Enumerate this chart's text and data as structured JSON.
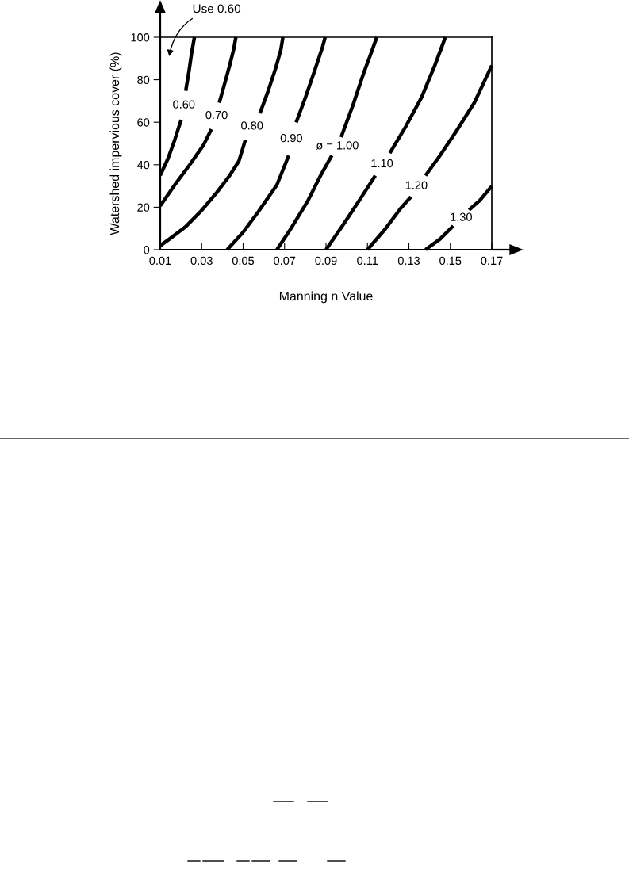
{
  "chart_data": {
    "type": "line",
    "xlabel": "Manning n Value",
    "ylabel": "Watershed impervious cover (%)",
    "xlim": [
      0.01,
      0.17
    ],
    "ylim": [
      0,
      100
    ],
    "xticks": [
      0.01,
      0.03,
      0.05,
      0.07,
      0.09,
      0.11,
      0.13,
      0.15,
      0.17
    ],
    "yticks": [
      0,
      20,
      40,
      60,
      80,
      100
    ],
    "grid": false,
    "legend": false,
    "marker": "none",
    "line_style": "solid",
    "series": [
      {
        "name": "0.60",
        "color": "#000000",
        "x": [
          0.01,
          0.0138,
          0.017,
          0.0201,
          0.0214,
          0.0223,
          0.0239,
          0.0252,
          0.0265
        ],
        "values": [
          35,
          43,
          51.7,
          61.1,
          null,
          74.8,
          84.2,
          92.9,
          100
        ]
      },
      {
        "name": "0.70",
        "color": "#000000",
        "x": [
          0.01,
          0.017,
          0.0246,
          0.0309,
          0.0347,
          0.0372,
          0.0385,
          0.041,
          0.0435,
          0.0454,
          0.0465
        ],
        "values": [
          20.6,
          30.5,
          40.5,
          49.3,
          56.7,
          null,
          69.2,
          77.9,
          86.7,
          94.1,
          100
        ]
      },
      {
        "name": "0.80",
        "color": "#000000",
        "x": [
          0.01,
          0.0144,
          0.022,
          0.0296,
          0.0372,
          0.0435,
          0.048,
          0.0511,
          0.0543,
          0.0581,
          0.0619,
          0.0657,
          0.0682,
          0.0692
        ],
        "values": [
          1.9,
          5,
          10.6,
          18.1,
          26.8,
          34.9,
          41.8,
          51.7,
          null,
          64.2,
          74.2,
          85.4,
          94.1,
          100
        ]
      },
      {
        "name": "0.90",
        "color": "#000000",
        "x": [
          0.0423,
          0.0499,
          0.0575,
          0.0663,
          0.072,
          0.0733,
          0.0756,
          0.0801,
          0.0845,
          0.0883,
          0.0896
        ],
        "values": [
          0,
          8.1,
          18.1,
          30.5,
          44.3,
          null,
          59.9,
          71.7,
          84.2,
          95.4,
          100
        ]
      },
      {
        "name": "ø = 1.00",
        "color": "#000000",
        "x": [
          0.0663,
          0.0727,
          0.0813,
          0.0877,
          0.0928,
          0.0955,
          0.0973,
          0.103,
          0.1081,
          0.1119,
          0.1145
        ],
        "values": [
          0,
          9.4,
          23.1,
          35.5,
          44.3,
          null,
          53,
          68,
          82.9,
          92.9,
          100
        ]
      },
      {
        "name": "1.10",
        "color": "#000000",
        "x": [
          0.09,
          0.0992,
          0.1068,
          0.1138,
          0.117,
          0.1208,
          0.1285,
          0.1361,
          0.1425,
          0.1463,
          0.1476
        ],
        "values": [
          0,
          13.1,
          24.3,
          34.9,
          null,
          45.5,
          58,
          71.7,
          86.7,
          96.6,
          100
        ]
      },
      {
        "name": "1.20",
        "color": "#000000",
        "x": [
          0.11,
          0.1183,
          0.1259,
          0.131,
          0.1336,
          0.138,
          0.145,
          0.1527,
          0.1616,
          0.17
        ],
        "values": [
          0,
          9.4,
          19.3,
          24.9,
          null,
          34.9,
          44.3,
          55.5,
          69.2,
          86.7
        ]
      },
      {
        "name": "1.30",
        "color": "#000000",
        "x": [
          0.138,
          0.145,
          0.1514,
          0.1552,
          0.159,
          0.1641,
          0.17
        ],
        "values": [
          0,
          5,
          11.2,
          null,
          18.7,
          23.1,
          29.9
        ]
      }
    ],
    "annotations": [
      "Use 0.60"
    ]
  }
}
